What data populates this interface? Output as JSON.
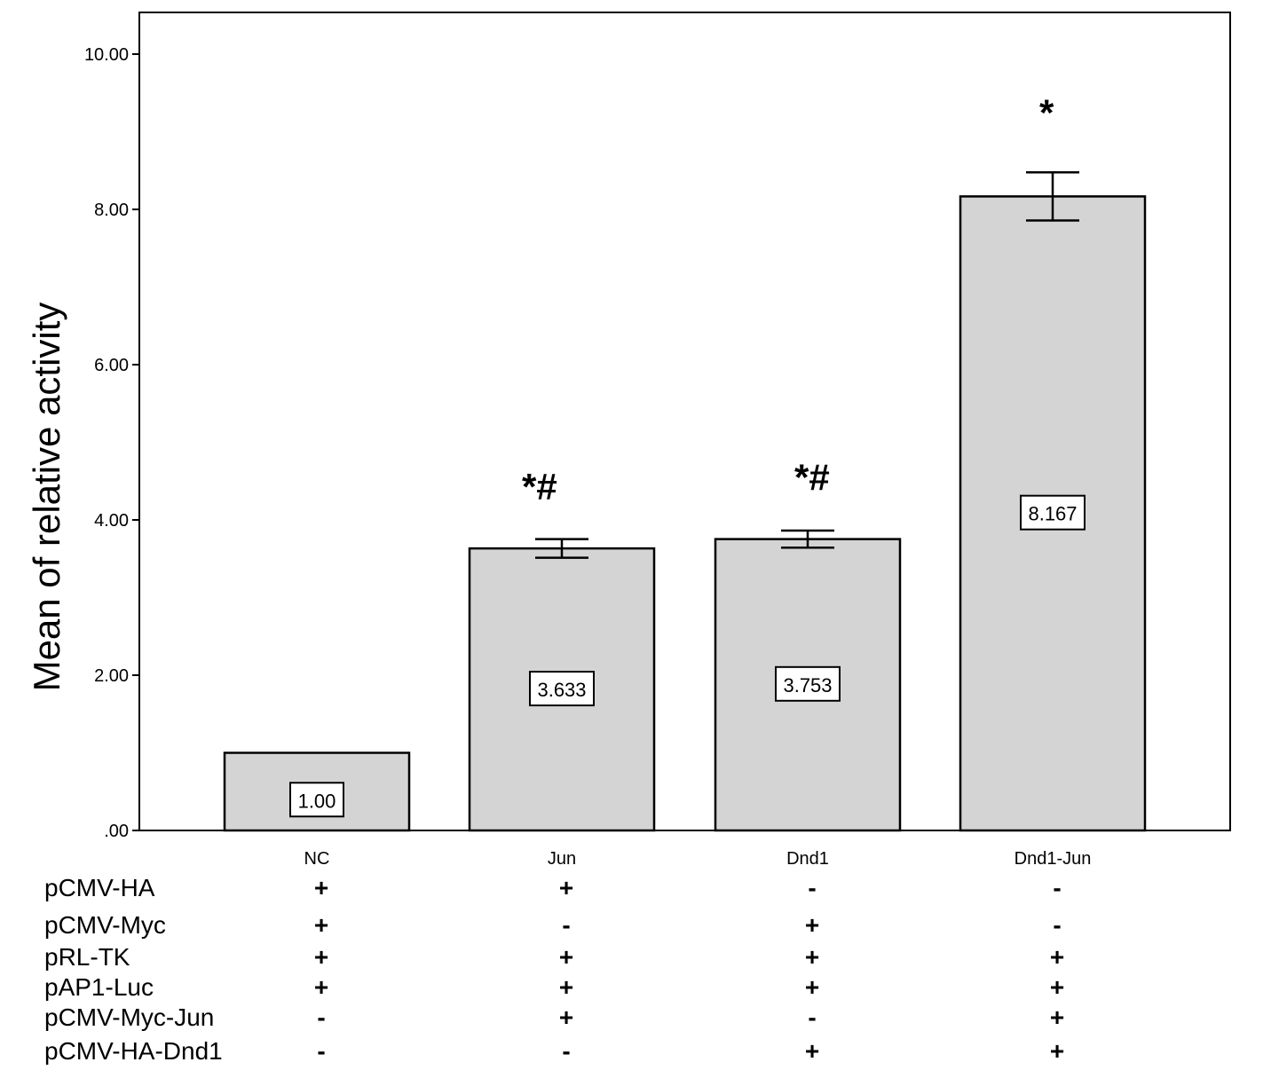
{
  "chart_data": {
    "type": "bar",
    "categories": [
      "NC",
      "Jun",
      "Dnd1",
      "Dnd1-Jun"
    ],
    "values": [
      1.0,
      3.633,
      3.753,
      8.167
    ],
    "error_bars": [
      0.0,
      0.12,
      0.11,
      0.31
    ],
    "data_labels": [
      "1.00",
      "3.633",
      "3.753",
      "8.167"
    ],
    "significance": [
      "",
      "*#",
      "*#",
      "*"
    ],
    "ylabel": "Mean of relative activity",
    "xlabel": "",
    "title": "",
    "ylim": [
      0,
      10.8
    ],
    "yticks": [
      0,
      2,
      4,
      6,
      8,
      10
    ],
    "ytick_labels": [
      ".00",
      "2.00",
      "4.00",
      "6.00",
      "8.00",
      "10.00"
    ],
    "grid": false,
    "bar_color": "#d4d4d4",
    "construct_table": [
      {
        "name": "pCMV-HA",
        "signs": [
          "+",
          "+",
          "-",
          "-"
        ]
      },
      {
        "name": "pCMV-Myc",
        "signs": [
          "+",
          "-",
          "+",
          "-"
        ]
      },
      {
        "name": "pRL-TK",
        "signs": [
          "+",
          "+",
          "+",
          "+"
        ]
      },
      {
        "name": "pAP1-Luc",
        "signs": [
          "+",
          "+",
          "+",
          "+"
        ]
      },
      {
        "name": "pCMV-Myc-Jun",
        "signs": [
          "-",
          "+",
          "-",
          "+"
        ]
      },
      {
        "name": "pCMV-HA-Dnd1",
        "signs": [
          "-",
          "-",
          "+",
          "+"
        ]
      }
    ]
  }
}
